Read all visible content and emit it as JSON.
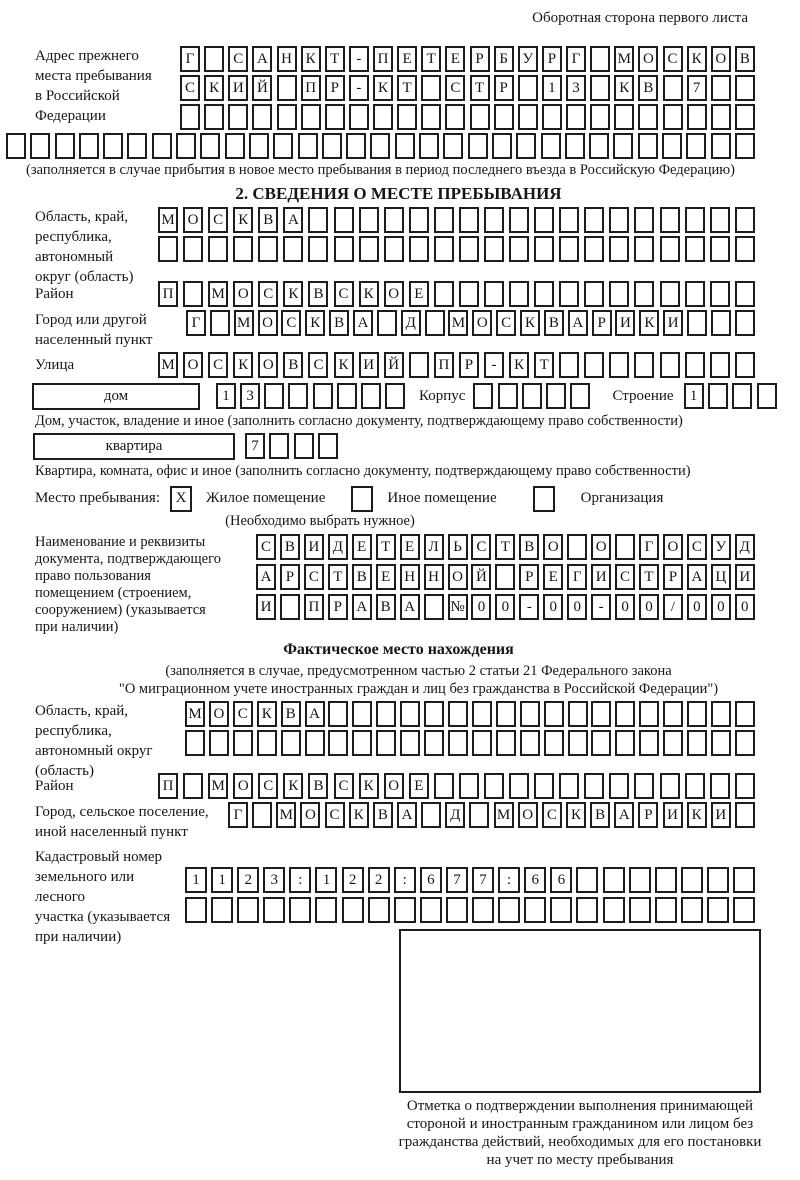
{
  "header": {
    "note": "Оборотная сторона первого листа"
  },
  "previous_address": {
    "label": "Адрес прежнего\nместа пребывания\nв Российской\nФедерации",
    "row_len": 24,
    "rows": [
      "Г САНКТ-ПЕТЕРБУРГ МОСКОВ",
      "СКИЙ ПР-КТ СТР 13 КВ 7",
      ""
    ],
    "overflow_row": "",
    "overflow_len": 31,
    "footnote": "(заполняется в случае прибытия в новое место пребывания в период последнего въезда в Российскую Федерацию)"
  },
  "stay_info": {
    "title": "2. СВЕДЕНИЯ О МЕСТЕ ПРЕБЫВАНИЯ",
    "region": {
      "label": "Область, край,\nреспублика,\nавтономный\nокруг (область)",
      "len": 24,
      "rows": [
        "МОСКВА",
        ""
      ]
    },
    "district": {
      "label": "Район",
      "len": 24,
      "row": "П МОСКВСКОЕ"
    },
    "city": {
      "label": "Город или другой\nнаселенный пункт",
      "len": 24,
      "row": "Г МОСКВА Д МОСКВАРИКИ"
    },
    "street": {
      "label": "Улица",
      "len": 24,
      "row": "МОСКОВСКИЙ ПР-КТ"
    },
    "house": {
      "box_label": "дом",
      "cells": "13",
      "len": 8,
      "korpus_label": "Корпус",
      "korpus_cells": "",
      "korpus_len": 5,
      "stroenie_label": "Строение",
      "stroenie_cells": "1",
      "stroenie_len": 4,
      "footnote": "Дом, участок, владение и иное (заполнить согласно документу, подтверждающему право собственности)"
    },
    "apartment": {
      "box_label": "квартира",
      "cells": "7",
      "len": 4,
      "footnote": "Квартира, комната, офис и иное (заполнить согласно документу, подтверждающему право собственности)"
    },
    "stay_type": {
      "label": "Место пребывания:",
      "options": [
        {
          "label": "Жилое помещение",
          "mark": "X"
        },
        {
          "label": "Иное помещение",
          "mark": ""
        },
        {
          "label": "Организация",
          "mark": ""
        }
      ],
      "note": "(Необходимо выбрать нужное)"
    },
    "document": {
      "label": "Наименование и реквизиты\nдокумента, подтверждающего\nправо пользования\nпомещением (строением,\nсооружением) (указывается\nпри наличии)",
      "len": 21,
      "rows": [
        "СВИДЕТЕЛЬСТВО О ГОСУД",
        "АРСТВЕННОЙ РЕГИСТРАЦИ",
        "И ПРАВА №00-00-00/000"
      ]
    }
  },
  "actual_location": {
    "title": "Фактическое место нахождения",
    "note": "(заполняется в случае, предусмотренном частью 2 статьи 21 Федерального закона\n\"О миграционном учете иностранных граждан и лиц без гражданства в Российской Федерации\")",
    "region": {
      "label": "Область, край,\nреспублика,\nавтономный округ\n(область)",
      "len": 24,
      "rows": [
        "МОСКВА",
        ""
      ]
    },
    "district": {
      "label": "Район",
      "len": 24,
      "row": "П МОСКВСКОЕ"
    },
    "city": {
      "label": "Город, сельское поселение,\nиной населенный пункт",
      "len": 22,
      "row": "Г МОСКВА Д МОСКВАРИКИ"
    },
    "cadastral": {
      "label": "Кадастровый номер\nземельного или лесного\nучастка (указывается\nпри наличии)",
      "len": 22,
      "rows": [
        "1123:122:677:66",
        ""
      ]
    },
    "confirmation_caption": "Отметка о подтверждении выполнения принимающей\nстороной и иностранным гражданином или лицом без\nгражданства действий, необходимых для его постановки\nна учет по месту пребывания"
  }
}
